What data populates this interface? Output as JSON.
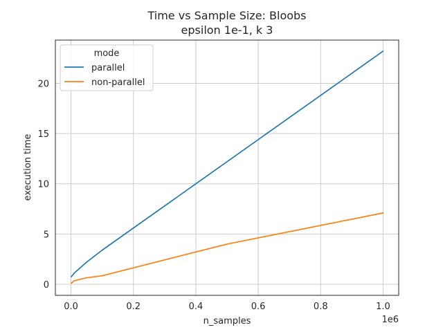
{
  "chart_data": {
    "type": "line",
    "title_line1": "Time vs Sample Size: Bloobs",
    "title_line2": "epsilon 1e-1, k 3",
    "xlabel": "n_samples",
    "ylabel": "execution time",
    "x_offset_label": "1e6",
    "xlim": [
      -0.05,
      1.05
    ],
    "ylim": [
      -1.1,
      24.3
    ],
    "x_ticks": [
      0.0,
      0.2,
      0.4,
      0.6,
      0.8,
      1.0
    ],
    "x_tick_labels": [
      "0.0",
      "0.2",
      "0.4",
      "0.6",
      "0.8",
      "1.0"
    ],
    "y_ticks": [
      0,
      5,
      10,
      15,
      20
    ],
    "y_tick_labels": [
      "0",
      "5",
      "10",
      "15",
      "20"
    ],
    "grid": true,
    "legend": {
      "title": "mode",
      "placement": "top-left"
    },
    "series": [
      {
        "name": "parallel",
        "color": "#1f77b4",
        "x": [
          0.001,
          0.01,
          0.05,
          0.1,
          0.5,
          1.0
        ],
        "y": [
          0.75,
          1.1,
          2.2,
          3.4,
          12.2,
          23.2
        ]
      },
      {
        "name": "non-parallel",
        "color": "#ff7f0e",
        "x": [
          0.001,
          0.01,
          0.05,
          0.1,
          0.5,
          1.0
        ],
        "y": [
          0.1,
          0.35,
          0.65,
          0.85,
          4.0,
          7.1
        ]
      }
    ]
  }
}
